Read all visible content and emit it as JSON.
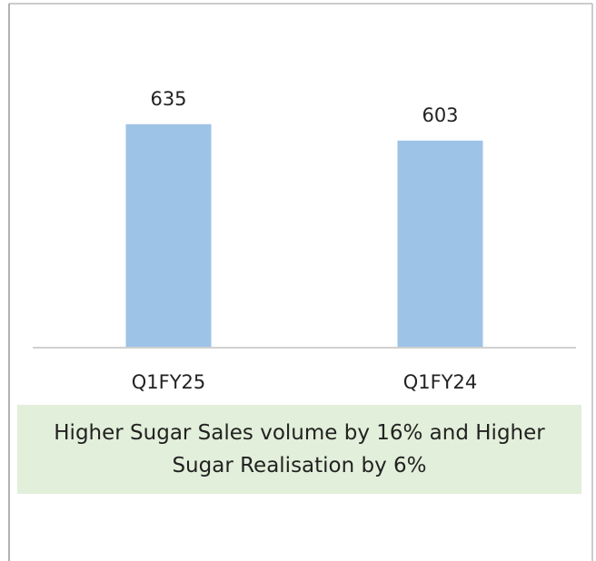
{
  "chart_data": {
    "type": "bar",
    "categories": [
      "Q1FY25",
      "Q1FY24"
    ],
    "values": [
      635,
      603
    ],
    "color": "#9dc3e6",
    "ylim": [
      200,
      700
    ],
    "annotation": "Higher Sugar Sales volume by 16% and Higher Sugar Realisation by 6%"
  }
}
